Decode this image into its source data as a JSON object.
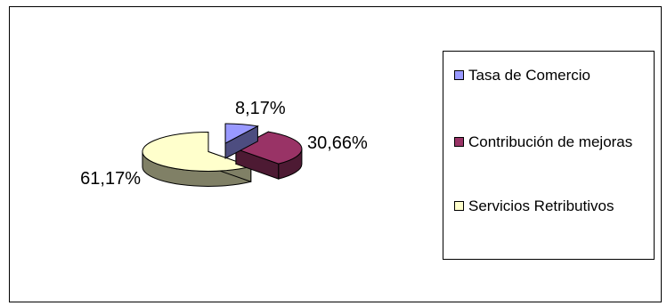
{
  "chart_data": {
    "type": "pie",
    "style": "3d-exploded",
    "categories": [
      "Tasa de Comercio",
      "Contribución de mejoras",
      "Servicios Retributivos"
    ],
    "values": [
      8.17,
      30.66,
      61.17
    ],
    "data_labels": [
      "8,17%",
      "30,66%",
      "61,17%"
    ],
    "colors": [
      "#9999ff",
      "#993366",
      "#ffffcc"
    ],
    "side_colors": [
      "#4d4d80",
      "#4d1a33",
      "#808066"
    ],
    "legend_position": "right",
    "grid": false,
    "title": ""
  }
}
